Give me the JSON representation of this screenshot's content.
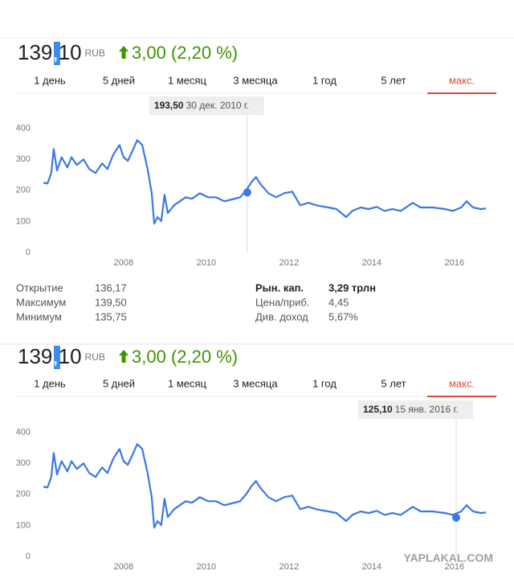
{
  "quotes": [
    {
      "price_whole": "139",
      "price_sep": ",",
      "price_frac": "10",
      "currency": "RUB",
      "change": "3,00 (2,20 %)",
      "ranges": [
        "1 день",
        "5 дней",
        "1 месяц",
        "3 месяца",
        "1 год",
        "5 лет",
        "макс."
      ]
    },
    {
      "price_whole": "139",
      "price_sep": ",",
      "price_frac": "10",
      "currency": "RUB",
      "change": "3,00 (2,20 %)",
      "ranges": [
        "1 день",
        "5 дней",
        "1 месяц",
        "3 месяца",
        "1 год",
        "5 лет",
        "макс."
      ]
    }
  ],
  "stats": {
    "left": [
      {
        "label": "Открытие",
        "value": "136,17"
      },
      {
        "label": "Максимум",
        "value": "139,50"
      },
      {
        "label": "Минимум",
        "value": "135,75"
      }
    ],
    "right": [
      {
        "label": "Рын. кап.",
        "value": "3,29 трлн"
      },
      {
        "label": "Цена/приб.",
        "value": "4,45"
      },
      {
        "label": "Див. доход",
        "value": "5,67%"
      }
    ]
  },
  "watermark": "YAPLAKAL.COM",
  "chart_data": [
    {
      "type": "line",
      "color": "#3b78e7",
      "x": [
        2006.06,
        2006.16,
        2006.25,
        2006.31,
        2006.39,
        2006.5,
        2006.64,
        2006.74,
        2006.87,
        2007.03,
        2007.17,
        2007.32,
        2007.48,
        2007.61,
        2007.75,
        2007.9,
        2008.0,
        2008.1,
        2008.19,
        2008.33,
        2008.45,
        2008.58,
        2008.68,
        2008.74,
        2008.82,
        2008.91,
        2008.99,
        2009.07,
        2009.22,
        2009.36,
        2009.5,
        2009.65,
        2009.84,
        2010.04,
        2010.23,
        2010.43,
        2010.62,
        2010.82,
        2010.97,
        2011.11,
        2011.2,
        2011.3,
        2011.5,
        2011.69,
        2011.88,
        2012.08,
        2012.27,
        2012.47,
        2012.66,
        2012.95,
        2013.15,
        2013.38,
        2013.53,
        2013.73,
        2013.92,
        2014.12,
        2014.31,
        2014.5,
        2014.7,
        2014.99,
        2015.18,
        2015.48,
        2015.77,
        2015.96,
        2016.16,
        2016.29,
        2016.45,
        2016.64,
        2016.76
      ],
      "values": [
        225,
        222,
        256,
        333,
        264,
        307,
        274,
        307,
        282,
        300,
        269,
        256,
        287,
        269,
        315,
        346,
        307,
        295,
        320,
        362,
        346,
        269,
        191,
        93,
        114,
        101,
        186,
        127,
        152,
        165,
        178,
        173,
        191,
        178,
        178,
        165,
        171,
        178,
        202,
        230,
        243,
        222,
        191,
        178,
        191,
        196,
        152,
        160,
        152,
        145,
        140,
        114,
        134,
        145,
        140,
        147,
        134,
        140,
        134,
        160,
        145,
        145,
        140,
        134,
        145,
        165,
        145,
        140,
        142
      ],
      "xlim": [
        2005.4,
        2017.05
      ],
      "xticks": [
        2008,
        2010,
        2012,
        2014,
        2016
      ],
      "ylim": [
        0,
        430
      ],
      "yticks": [
        0,
        100,
        200,
        300,
        400
      ],
      "tooltip": {
        "x": 2010.99,
        "y": 193.5,
        "value_label": "193,50",
        "date": "30 дек. 2010 г."
      }
    },
    {
      "type": "line",
      "color": "#3b78e7",
      "x": [
        2006.06,
        2006.16,
        2006.25,
        2006.31,
        2006.39,
        2006.5,
        2006.64,
        2006.74,
        2006.87,
        2007.03,
        2007.17,
        2007.32,
        2007.48,
        2007.61,
        2007.75,
        2007.9,
        2008.0,
        2008.1,
        2008.19,
        2008.33,
        2008.45,
        2008.58,
        2008.68,
        2008.74,
        2008.82,
        2008.91,
        2008.99,
        2009.07,
        2009.22,
        2009.36,
        2009.5,
        2009.65,
        2009.84,
        2010.04,
        2010.23,
        2010.43,
        2010.62,
        2010.82,
        2010.97,
        2011.11,
        2011.2,
        2011.3,
        2011.5,
        2011.69,
        2011.88,
        2012.08,
        2012.27,
        2012.47,
        2012.66,
        2012.95,
        2013.15,
        2013.38,
        2013.53,
        2013.73,
        2013.92,
        2014.12,
        2014.31,
        2014.5,
        2014.7,
        2014.99,
        2015.18,
        2015.48,
        2015.77,
        2015.96,
        2016.16,
        2016.29,
        2016.45,
        2016.64,
        2016.76
      ],
      "values": [
        225,
        222,
        256,
        333,
        264,
        307,
        274,
        307,
        282,
        300,
        269,
        256,
        287,
        269,
        315,
        346,
        307,
        295,
        320,
        362,
        346,
        269,
        191,
        93,
        114,
        101,
        186,
        127,
        152,
        165,
        178,
        173,
        191,
        178,
        178,
        165,
        171,
        178,
        202,
        230,
        243,
        222,
        191,
        178,
        191,
        196,
        152,
        160,
        152,
        145,
        140,
        114,
        134,
        145,
        140,
        147,
        134,
        140,
        134,
        160,
        145,
        145,
        140,
        134,
        145,
        165,
        145,
        140,
        142
      ],
      "xlim": [
        2005.4,
        2017.05
      ],
      "xticks": [
        2008,
        2010,
        2012,
        2014,
        2016
      ],
      "ylim": [
        0,
        430
      ],
      "yticks": [
        0,
        100,
        200,
        300,
        400
      ],
      "tooltip": {
        "x": 2016.04,
        "y": 125.1,
        "value_label": "125,10",
        "date": "15 янв. 2016 г."
      }
    }
  ]
}
